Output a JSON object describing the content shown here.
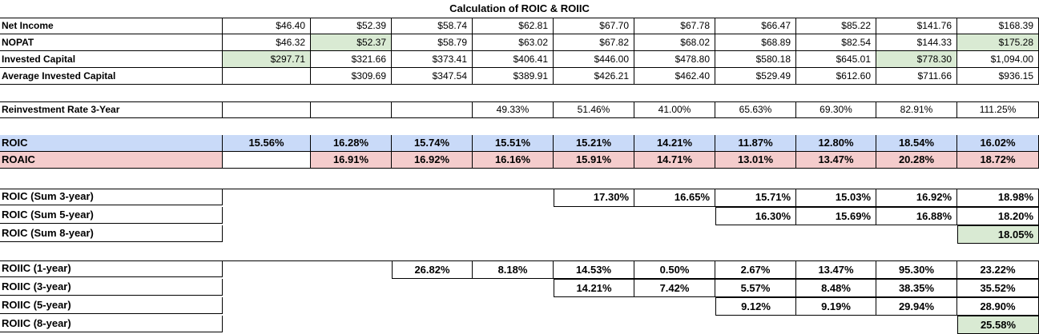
{
  "sheet": {
    "title": "Calculation of ROIC & ROIIC",
    "colors": {
      "green_highlight": "#d9ead3",
      "blue_row": "#c9daf8",
      "red_row": "#f4cccc",
      "grid": "#000000"
    },
    "top_rows": [
      {
        "label": "Net Income",
        "values": [
          "$46.40",
          "$52.39",
          "$58.74",
          "$62.81",
          "$67.70",
          "$67.78",
          "$66.47",
          "$85.22",
          "$141.76",
          "$168.39"
        ]
      },
      {
        "label": "NOPAT",
        "values": [
          "$46.32",
          "$52.37",
          "$58.79",
          "$63.02",
          "$67.82",
          "$68.02",
          "$68.89",
          "$82.54",
          "$144.33",
          "$175.28"
        ]
      },
      {
        "label": "Invested Capital",
        "values": [
          "$297.71",
          "$321.66",
          "$373.41",
          "$406.41",
          "$446.00",
          "$478.80",
          "$580.18",
          "$645.01",
          "$778.30",
          "$1,094.00"
        ]
      },
      {
        "label": "Average Invested Capital",
        "values": [
          "",
          "$309.69",
          "$347.54",
          "$389.91",
          "$426.21",
          "$462.40",
          "$529.49",
          "$612.60",
          "$711.66",
          "$936.15"
        ]
      }
    ],
    "reinvestment": {
      "label": "Reinvestment Rate 3-Year",
      "values": [
        "",
        "",
        "",
        "49.33%",
        "51.46%",
        "41.00%",
        "65.63%",
        "69.30%",
        "82.91%",
        "111.25%"
      ]
    },
    "roic": {
      "label": "ROIC",
      "values": [
        "15.56%",
        "16.28%",
        "15.74%",
        "15.51%",
        "15.21%",
        "14.21%",
        "11.87%",
        "12.80%",
        "18.54%",
        "16.02%"
      ]
    },
    "roaic": {
      "label": "ROAIC",
      "values": [
        "",
        "16.91%",
        "16.92%",
        "16.16%",
        "15.91%",
        "14.71%",
        "13.01%",
        "13.47%",
        "20.28%",
        "18.72%"
      ]
    },
    "roic_sum": [
      {
        "label": "ROIC (Sum 3-year)",
        "values": [
          "",
          "",
          "",
          "",
          "17.30%",
          "16.65%",
          "15.71%",
          "15.03%",
          "16.92%",
          "18.98%"
        ]
      },
      {
        "label": "ROIC (Sum 5-year)",
        "values": [
          "",
          "",
          "",
          "",
          "",
          "",
          "16.30%",
          "15.69%",
          "16.88%",
          "18.20%"
        ]
      },
      {
        "label": "ROIC (Sum 8-year)",
        "values": [
          "",
          "",
          "",
          "",
          "",
          "",
          "",
          "",
          "",
          "18.05%"
        ]
      }
    ],
    "roiic": [
      {
        "label": "ROIIC (1-year)",
        "values": [
          "",
          "",
          "26.82%",
          "8.18%",
          "14.53%",
          "0.50%",
          "2.67%",
          "13.47%",
          "95.30%",
          "23.22%"
        ]
      },
      {
        "label": "ROIIC (3-year)",
        "values": [
          "",
          "",
          "",
          "",
          "14.21%",
          "7.42%",
          "5.57%",
          "8.48%",
          "38.35%",
          "35.52%"
        ]
      },
      {
        "label": "ROIIC (5-year)",
        "values": [
          "",
          "",
          "",
          "",
          "",
          "",
          "9.12%",
          "9.19%",
          "29.94%",
          "28.90%"
        ]
      },
      {
        "label": "ROIIC (8-year)",
        "values": [
          "",
          "",
          "",
          "",
          "",
          "",
          "",
          "",
          "",
          "25.58%"
        ]
      }
    ]
  }
}
